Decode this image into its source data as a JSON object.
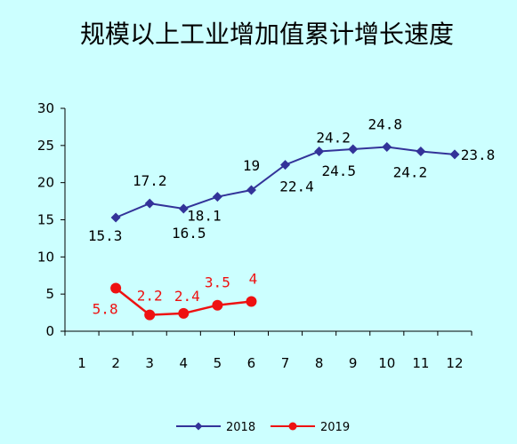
{
  "chart_data": {
    "type": "line",
    "title": "规模以上工业增加值累计增长速度",
    "xlabel": "",
    "ylabel": "",
    "categories": [
      "1",
      "2",
      "3",
      "4",
      "5",
      "6",
      "7",
      "8",
      "9",
      "10",
      "11",
      "12"
    ],
    "ylim": [
      0,
      30
    ],
    "yticks": [
      "0",
      "5",
      "10",
      "15",
      "20",
      "25",
      "30"
    ],
    "grid": false,
    "legend_position": "bottom",
    "series": [
      {
        "name": "2018",
        "color": "#333399",
        "marker": "diamond",
        "x": [
          2,
          3,
          4,
          5,
          6,
          7,
          8,
          9,
          10,
          11,
          12
        ],
        "values": [
          15.3,
          17.2,
          16.5,
          18.1,
          19,
          22.4,
          24.2,
          24.5,
          24.8,
          24.2,
          23.8
        ],
        "labels": [
          "15.3",
          "17.2",
          "16.5",
          "18.1",
          "19",
          "22.4",
          "24.2",
          "24.5",
          "24.8",
          "24.2",
          "23.8"
        ]
      },
      {
        "name": "2019",
        "color": "#ee1111",
        "marker": "circle",
        "x": [
          2,
          3,
          4,
          5,
          6
        ],
        "values": [
          5.8,
          2.2,
          2.4,
          3.5,
          4
        ],
        "labels": [
          "5.8",
          "2.2",
          "2.4",
          "3.5",
          "4"
        ]
      }
    ]
  }
}
